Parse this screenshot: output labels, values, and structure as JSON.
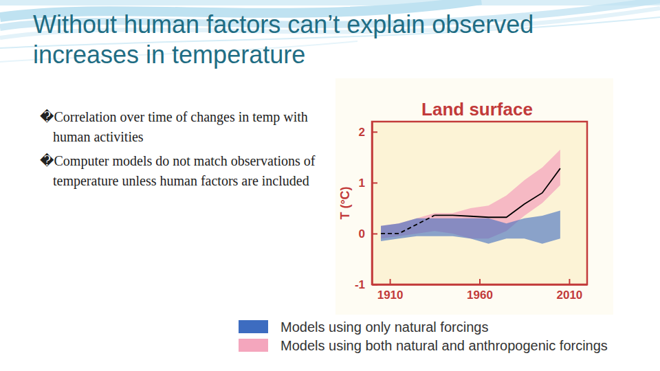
{
  "slide": {
    "title": "Without human factors can’t explain observed increases in temperature",
    "bullets": [
      "�Correlation over time of changes in temp with human activities",
      "�Computer models do not match observations of temperature unless human factors are included"
    ]
  },
  "chart_data": {
    "type": "line",
    "title": "Land surface",
    "y_label": "T (°C)",
    "xlim": [
      1900,
      2020
    ],
    "xticks": [
      1910,
      1960,
      2010
    ],
    "ylim": [
      -1,
      2.2
    ],
    "yticks": [
      -1,
      0,
      1,
      2
    ],
    "legend": "bottom",
    "series": [
      {
        "name": "Models using only natural forcings",
        "type": "area",
        "color": "#3d6cc0",
        "x": [
          1905,
          1915,
          1925,
          1935,
          1945,
          1955,
          1965,
          1975,
          1985,
          1995,
          2005
        ],
        "upper": [
          0.15,
          0.2,
          0.3,
          0.3,
          0.3,
          0.3,
          0.3,
          0.2,
          0.3,
          0.35,
          0.45
        ],
        "lower": [
          -0.15,
          -0.1,
          -0.05,
          -0.05,
          -0.05,
          -0.1,
          -0.2,
          -0.1,
          -0.1,
          -0.2,
          -0.1
        ]
      },
      {
        "name": "Models using both natural and anthropogenic forcings",
        "type": "area",
        "color": "#f4a6bd",
        "x": [
          1905,
          1915,
          1925,
          1935,
          1945,
          1955,
          1965,
          1975,
          1985,
          1995,
          2005
        ],
        "upper": [
          0.15,
          0.2,
          0.3,
          0.4,
          0.4,
          0.5,
          0.55,
          0.75,
          1.05,
          1.3,
          1.65
        ],
        "lower": [
          -0.1,
          -0.05,
          0.0,
          0.05,
          0.0,
          -0.1,
          -0.1,
          0.05,
          0.35,
          0.6,
          0.95
        ]
      },
      {
        "type": "line",
        "color": "#000000",
        "line_style": "dashed",
        "x": [
          1905,
          1915,
          1925,
          1935
        ],
        "values": [
          0.0,
          0.0,
          0.18,
          0.36
        ]
      },
      {
        "type": "line",
        "color": "#000000",
        "line_style": "solid",
        "x": [
          1935,
          1945,
          1955,
          1965,
          1975,
          1985,
          1995,
          2005
        ],
        "values": [
          0.36,
          0.36,
          0.34,
          0.32,
          0.32,
          0.58,
          0.8,
          1.28
        ]
      }
    ]
  }
}
